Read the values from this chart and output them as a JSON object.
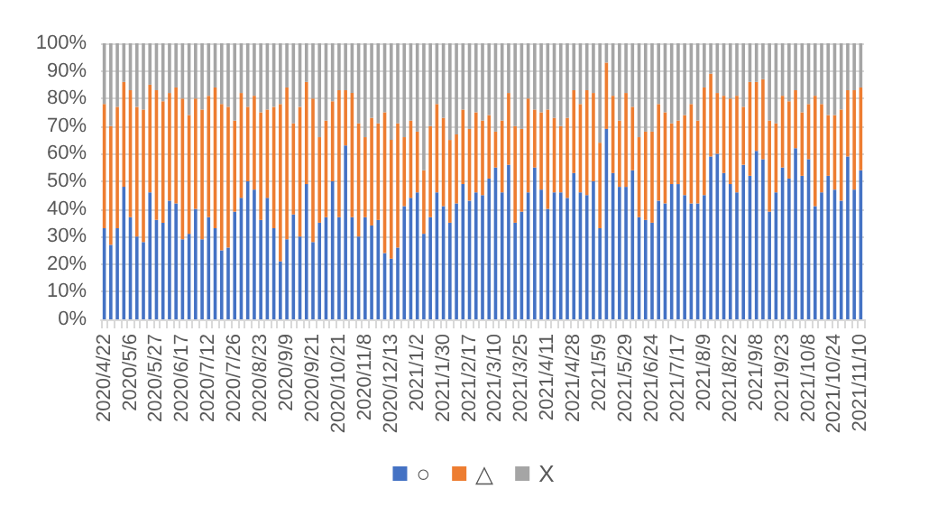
{
  "chart_data": {
    "type": "bar",
    "stacked": true,
    "categories": [
      "2020/4/22",
      null,
      null,
      null,
      "2020/5/6",
      null,
      null,
      null,
      "2020/5/27",
      null,
      null,
      null,
      "2020/6/17",
      null,
      null,
      null,
      "2020/7/12",
      null,
      null,
      null,
      "2020/7/26",
      null,
      null,
      null,
      "2020/8/23",
      null,
      null,
      null,
      "2020/9/9",
      null,
      null,
      null,
      "2020/9/21",
      null,
      null,
      null,
      "2020/10/21",
      null,
      null,
      null,
      "2020/11/8",
      null,
      null,
      null,
      "2020/12/13",
      null,
      null,
      null,
      "2021/1/2",
      null,
      null,
      null,
      "2021/1/30",
      null,
      null,
      null,
      "2021/2/17",
      null,
      null,
      null,
      "2021/3/10",
      null,
      null,
      null,
      "2021/3/25",
      null,
      null,
      null,
      "2021/4/11",
      null,
      null,
      null,
      "2021/4/28",
      null,
      null,
      null,
      "2021/5/9",
      null,
      null,
      null,
      "2021/5/29",
      null,
      null,
      null,
      "2021/6/24",
      null,
      null,
      null,
      "2021/7/17",
      null,
      null,
      null,
      "2021/8/9",
      null,
      null,
      null,
      "2021/8/22",
      null,
      null,
      null,
      "2021/9/8",
      null,
      null,
      null,
      "2021/9/23",
      null,
      null,
      null,
      "2021/10/8",
      null,
      null,
      null,
      "2021/10/24",
      null,
      null,
      null,
      "2021/11/10"
    ],
    "series": [
      {
        "name": "○",
        "color": "#4472c4",
        "values": [
          33,
          27,
          33,
          48,
          37,
          30,
          28,
          46,
          36,
          35,
          43,
          42,
          29,
          31,
          40,
          29,
          37,
          33,
          25,
          26,
          39,
          44,
          50,
          47,
          36,
          44,
          33,
          21,
          29,
          38,
          30,
          49,
          28,
          35,
          37,
          50,
          37,
          63,
          37,
          30,
          37,
          34,
          36,
          24,
          22,
          26,
          41,
          44,
          46,
          31,
          37,
          46,
          41,
          35,
          42,
          49,
          43,
          46,
          45,
          51,
          55,
          46,
          56,
          35,
          39,
          46,
          55,
          47,
          40,
          46,
          46,
          44,
          53,
          46,
          45,
          50,
          33,
          69,
          53,
          48,
          48,
          54,
          37,
          36,
          35,
          43,
          42,
          49,
          49,
          45,
          42,
          42,
          45,
          59,
          60,
          53,
          49,
          46,
          56,
          52,
          61,
          58,
          39,
          46,
          55,
          51,
          62,
          52,
          58,
          41,
          46,
          52,
          47,
          43,
          59,
          47,
          54
        ]
      },
      {
        "name": "△",
        "color": "#ed7d31",
        "values": [
          45,
          43,
          44,
          38,
          46,
          47,
          48,
          39,
          47,
          44,
          39,
          42,
          51,
          43,
          40,
          47,
          44,
          51,
          53,
          51,
          33,
          38,
          27,
          34,
          39,
          32,
          44,
          57,
          55,
          33,
          47,
          37,
          52,
          31,
          35,
          29,
          46,
          20,
          45,
          41,
          29,
          39,
          35,
          51,
          43,
          45,
          25,
          28,
          22,
          23,
          33,
          32,
          32,
          30,
          25,
          27,
          26,
          29,
          27,
          23,
          13,
          26,
          26,
          35,
          30,
          34,
          21,
          28,
          36,
          27,
          24,
          29,
          30,
          32,
          38,
          32,
          31,
          24,
          28,
          24,
          34,
          23,
          29,
          32,
          33,
          35,
          33,
          22,
          23,
          29,
          36,
          30,
          39,
          30,
          22,
          28,
          31,
          35,
          21,
          34,
          25,
          29,
          33,
          25,
          26,
          28,
          21,
          23,
          20,
          40,
          32,
          22,
          27,
          33,
          24,
          36,
          30
        ]
      },
      {
        "name": "X",
        "color": "#a5a5a5",
        "values": [
          22,
          30,
          23,
          14,
          17,
          23,
          24,
          15,
          17,
          21,
          18,
          16,
          20,
          26,
          20,
          24,
          19,
          16,
          22,
          23,
          28,
          18,
          23,
          19,
          25,
          24,
          23,
          22,
          16,
          29,
          23,
          14,
          20,
          34,
          28,
          21,
          17,
          17,
          18,
          29,
          34,
          27,
          29,
          25,
          35,
          29,
          34,
          28,
          32,
          46,
          30,
          22,
          27,
          35,
          33,
          24,
          31,
          25,
          28,
          26,
          32,
          28,
          18,
          30,
          31,
          20,
          24,
          25,
          24,
          27,
          30,
          27,
          17,
          22,
          17,
          18,
          36,
          7,
          19,
          28,
          18,
          23,
          34,
          32,
          32,
          22,
          25,
          29,
          28,
          26,
          22,
          28,
          16,
          11,
          18,
          19,
          20,
          19,
          23,
          14,
          14,
          13,
          28,
          29,
          19,
          21,
          17,
          25,
          22,
          19,
          22,
          26,
          26,
          24,
          17,
          17,
          16
        ]
      }
    ],
    "ylim": [
      0,
      100
    ],
    "yticks": [
      {
        "value": 0,
        "label": "0%"
      },
      {
        "value": 10,
        "label": "10%"
      },
      {
        "value": 20,
        "label": "20%"
      },
      {
        "value": 30,
        "label": "30%"
      },
      {
        "value": 40,
        "label": "40%"
      },
      {
        "value": 50,
        "label": "50%"
      },
      {
        "value": 60,
        "label": "60%"
      },
      {
        "value": 70,
        "label": "70%"
      },
      {
        "value": 80,
        "label": "80%"
      },
      {
        "value": 90,
        "label": "90%"
      },
      {
        "value": 100,
        "label": "100%"
      }
    ],
    "grid": "y",
    "legend": "bottom"
  }
}
